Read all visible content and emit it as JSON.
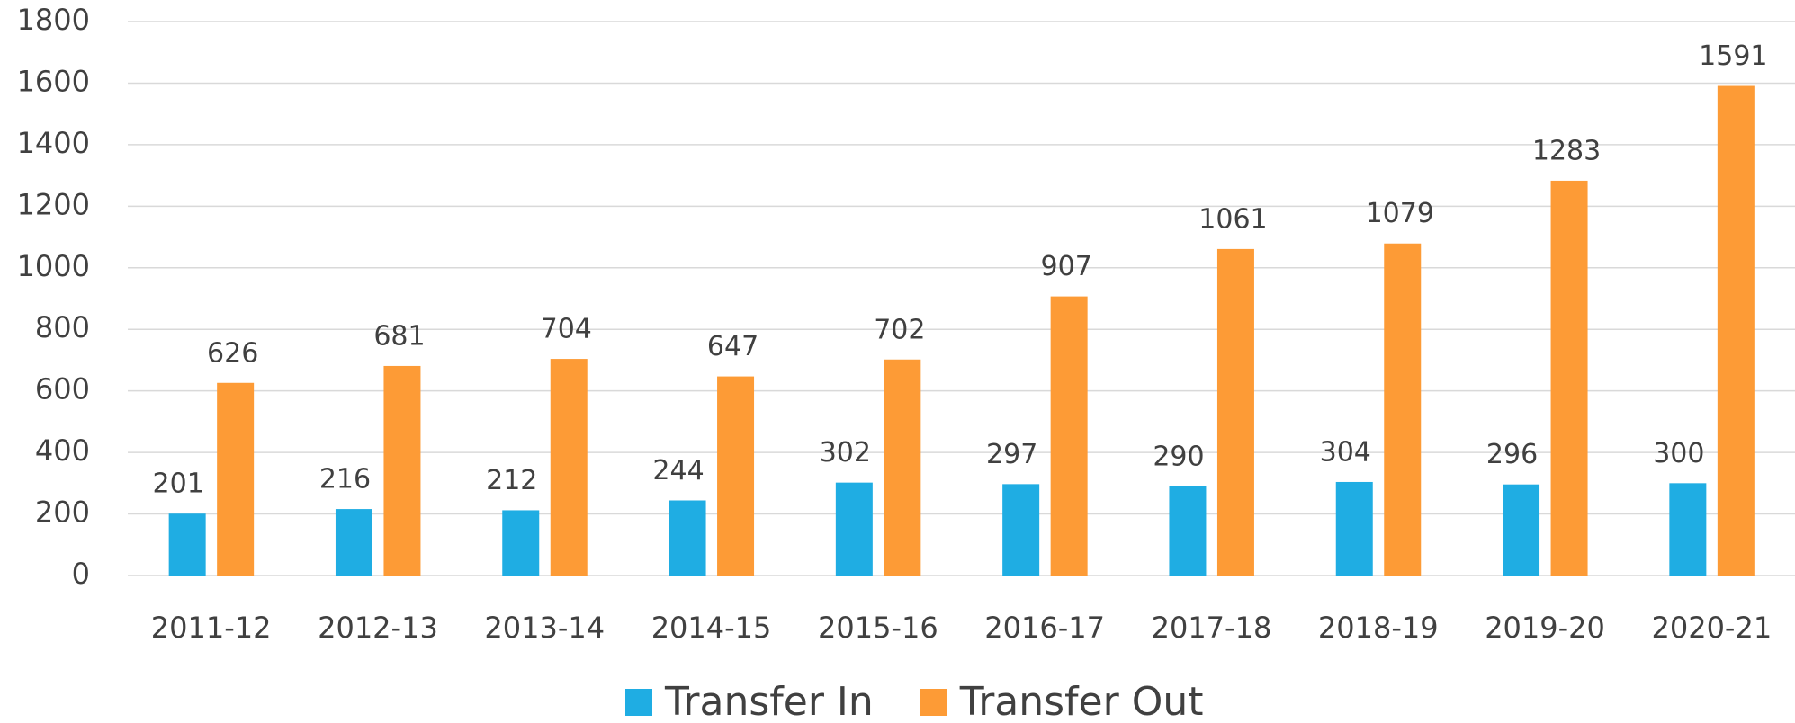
{
  "chart_data": {
    "type": "bar",
    "categories": [
      "2011-12",
      "2012-13",
      "2013-14",
      "2014-15",
      "2015-16",
      "2016-17",
      "2017-18",
      "2018-19",
      "2019-20",
      "2020-21"
    ],
    "series": [
      {
        "name": "Transfer In",
        "color": "#1fade3",
        "values": [
          201,
          216,
          212,
          244,
          302,
          297,
          290,
          304,
          296,
          300
        ]
      },
      {
        "name": "Transfer Out",
        "color": "#fd9b36",
        "values": [
          626,
          681,
          704,
          647,
          702,
          907,
          1061,
          1079,
          1283,
          1591
        ]
      }
    ],
    "ylim": [
      0,
      1800
    ],
    "yticks": [
      0,
      200,
      400,
      600,
      800,
      1000,
      1200,
      1400,
      1600,
      1800
    ],
    "grid": true,
    "legend": "bottom",
    "data_labels": true
  }
}
